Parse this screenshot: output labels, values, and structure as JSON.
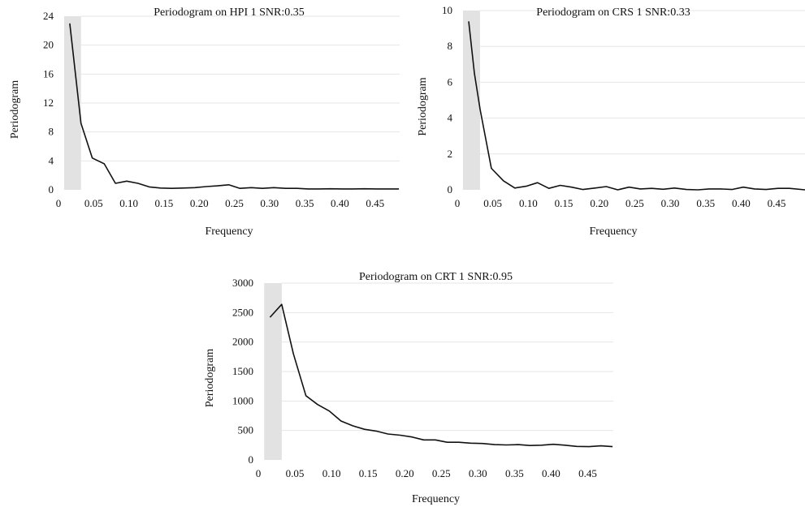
{
  "chart_data": [
    {
      "type": "line",
      "title": "Periodogram on HPI 1 SNR:0.35",
      "xlabel": "Frequency",
      "ylabel": "Periodogram",
      "xlim": [
        0,
        0.485
      ],
      "ylim": [
        0,
        24
      ],
      "x_ticks": [
        "0",
        "0.05",
        "0.10",
        "0.15",
        "0.20",
        "0.25",
        "0.30",
        "0.35",
        "0.40",
        "0.45"
      ],
      "y_ticks": [
        "0",
        "4",
        "8",
        "12",
        "16",
        "20",
        "24"
      ],
      "grid": true,
      "highlight_x_range": [
        0.008,
        0.032
      ],
      "band_color": "#e2e2e2",
      "series": [
        {
          "x": [
            0.016,
            0.032,
            0.048,
            0.065,
            0.081,
            0.097,
            0.113,
            0.129,
            0.145,
            0.161,
            0.177,
            0.194,
            0.21,
            0.226,
            0.242,
            0.258,
            0.274,
            0.29,
            0.306,
            0.323,
            0.339,
            0.355,
            0.371,
            0.387,
            0.403,
            0.419,
            0.435,
            0.452,
            0.468,
            0.484
          ],
          "y": [
            23.0,
            9.2,
            4.4,
            3.6,
            0.9,
            1.2,
            0.9,
            0.4,
            0.25,
            0.2,
            0.25,
            0.3,
            0.45,
            0.55,
            0.7,
            0.2,
            0.3,
            0.2,
            0.3,
            0.2,
            0.2,
            0.12,
            0.12,
            0.15,
            0.12,
            0.12,
            0.15,
            0.12,
            0.12,
            0.12
          ]
        }
      ]
    },
    {
      "type": "line",
      "title": "Periodogram on CRS 1 SNR:0.33",
      "xlabel": "Frequency",
      "ylabel": "Periodogram",
      "xlim": [
        0,
        0.49
      ],
      "ylim": [
        0,
        10
      ],
      "x_ticks": [
        "0",
        "0.05",
        "0.10",
        "0.15",
        "0.20",
        "0.25",
        "0.30",
        "0.35",
        "0.40",
        "0.45"
      ],
      "y_ticks": [
        "0",
        "2",
        "4",
        "6",
        "8",
        "10"
      ],
      "grid": true,
      "highlight_x_range": [
        0.008,
        0.032
      ],
      "band_color": "#e2e2e2",
      "series": [
        {
          "x": [
            0.016,
            0.024,
            0.032,
            0.048,
            0.065,
            0.081,
            0.097,
            0.113,
            0.129,
            0.145,
            0.161,
            0.177,
            0.194,
            0.21,
            0.226,
            0.242,
            0.258,
            0.274,
            0.29,
            0.306,
            0.323,
            0.339,
            0.355,
            0.371,
            0.387,
            0.403,
            0.419,
            0.435,
            0.452,
            0.468,
            0.49
          ],
          "y": [
            9.4,
            6.5,
            4.5,
            1.2,
            0.5,
            0.1,
            0.2,
            0.4,
            0.08,
            0.25,
            0.15,
            0.02,
            0.1,
            0.18,
            0.0,
            0.15,
            0.05,
            0.08,
            0.03,
            0.1,
            0.02,
            0.0,
            0.05,
            0.05,
            0.02,
            0.15,
            0.05,
            0.02,
            0.08,
            0.08,
            0.0
          ]
        }
      ]
    },
    {
      "type": "line",
      "title": "Periodogram on CRT 1 SNR:0.95",
      "xlabel": "Frequency",
      "ylabel": "Periodogram",
      "xlim": [
        0,
        0.485
      ],
      "ylim": [
        0,
        3000
      ],
      "x_ticks": [
        "0",
        "0.05",
        "0.10",
        "0.15",
        "0.20",
        "0.25",
        "0.30",
        "0.35",
        "0.40",
        "0.45"
      ],
      "y_ticks": [
        "0",
        "500",
        "1000",
        "1500",
        "2000",
        "2500",
        "3000"
      ],
      "grid": true,
      "highlight_x_range": [
        0.008,
        0.032
      ],
      "band_color": "#e2e2e2",
      "series": [
        {
          "x": [
            0.016,
            0.032,
            0.048,
            0.065,
            0.081,
            0.097,
            0.113,
            0.129,
            0.145,
            0.161,
            0.177,
            0.194,
            0.21,
            0.226,
            0.242,
            0.258,
            0.274,
            0.29,
            0.306,
            0.323,
            0.339,
            0.355,
            0.371,
            0.387,
            0.403,
            0.419,
            0.435,
            0.452,
            0.468,
            0.484
          ],
          "y": [
            2420,
            2640,
            1800,
            1090,
            940,
            830,
            660,
            580,
            520,
            490,
            440,
            420,
            390,
            340,
            340,
            300,
            300,
            285,
            280,
            260,
            255,
            260,
            245,
            250,
            265,
            250,
            230,
            225,
            240,
            225
          ]
        }
      ]
    }
  ]
}
